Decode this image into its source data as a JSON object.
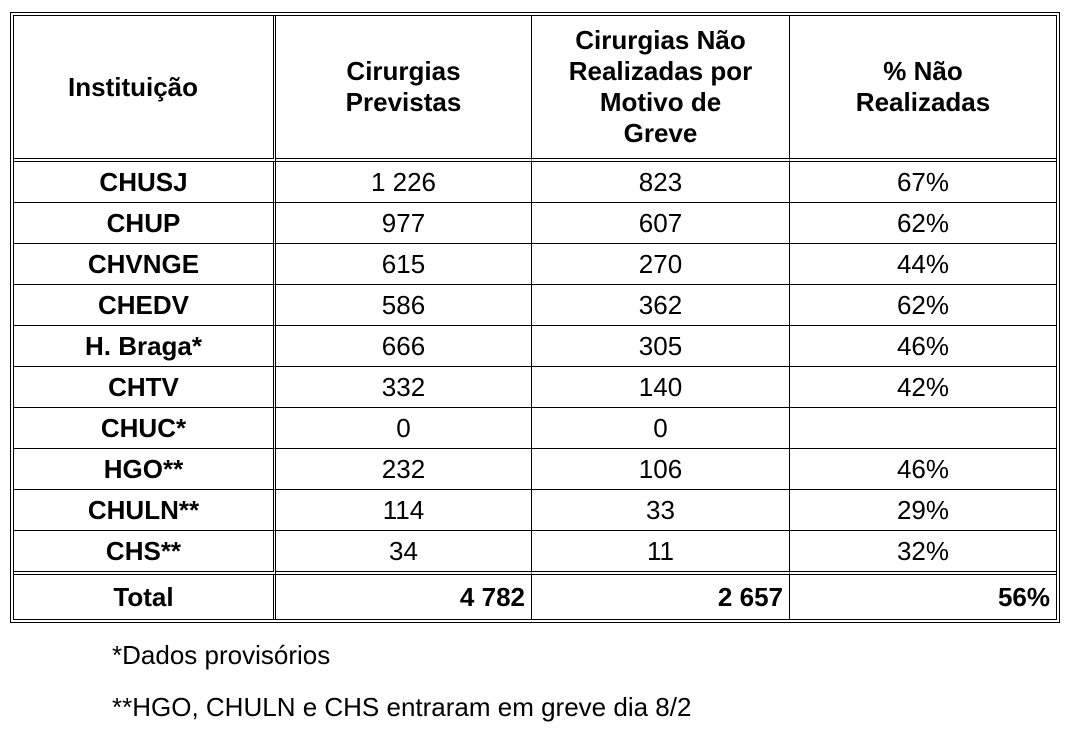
{
  "table": {
    "header": [
      "Instituição",
      "Cirurgias\nPrevistas",
      "Cirurgias Não\nRealizadas por\nMotivo de\nGreve",
      "% Não\nRealizadas"
    ],
    "rows": [
      [
        "CHUSJ",
        "1 226",
        "823",
        "67%"
      ],
      [
        "CHUP",
        "977",
        "607",
        "62%"
      ],
      [
        "CHVNGE",
        "615",
        "270",
        "44%"
      ],
      [
        "CHEDV",
        "586",
        "362",
        "62%"
      ],
      [
        "H. Braga*",
        "666",
        "305",
        "46%"
      ],
      [
        "CHTV",
        "332",
        "140",
        "42%"
      ],
      [
        "CHUC*",
        "0",
        "0",
        null
      ],
      [
        "HGO**",
        "232",
        "106",
        "46%"
      ],
      [
        "CHULN**",
        "114",
        "33",
        "29%"
      ],
      [
        "CHS**",
        "34",
        "11",
        "32%"
      ]
    ],
    "total": [
      "Total",
      "4 782",
      "2 657",
      "56%"
    ]
  },
  "notes": [
    "*Dados provisórios",
    "**HGO, CHULN e CHS entraram em greve dia 8/2"
  ]
}
